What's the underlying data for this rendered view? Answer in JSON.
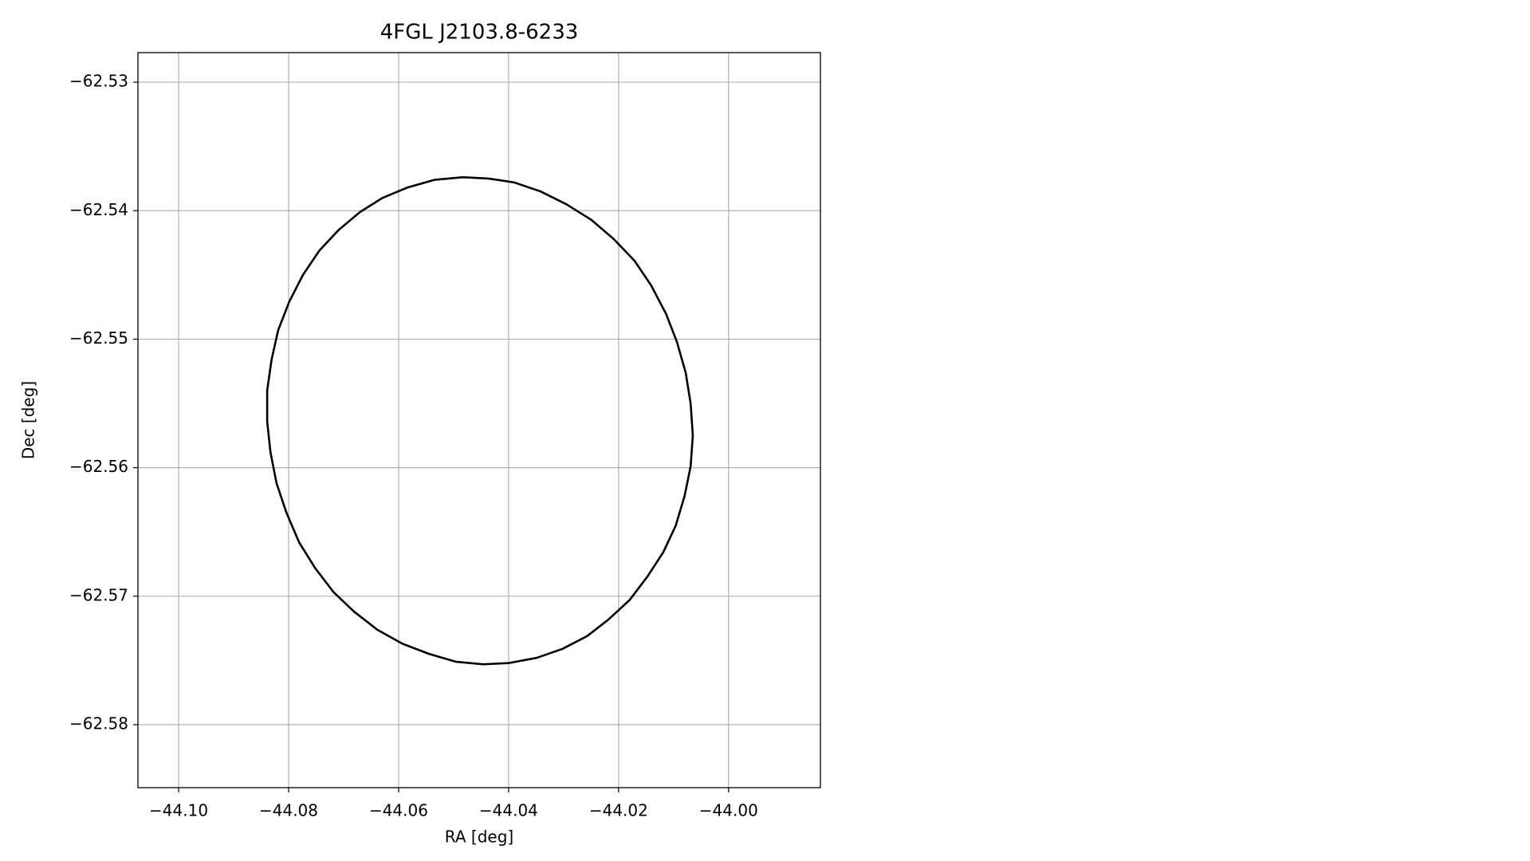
{
  "chart_data": {
    "type": "line",
    "title": "4FGL J2103.8-6233",
    "x_label": "RA [deg]",
    "y_label": "Dec [deg]",
    "grid": true,
    "xlim": [
      -44.1074,
      -43.9833
    ],
    "ylim": [
      -62.5849,
      -62.5277
    ],
    "xticks": [
      {
        "value": -44.1,
        "label": "−44.10"
      },
      {
        "value": -44.08,
        "label": "−44.08"
      },
      {
        "value": -44.06,
        "label": "−44.06"
      },
      {
        "value": -44.04,
        "label": "−44.04"
      },
      {
        "value": -44.02,
        "label": "−44.02"
      },
      {
        "value": -44.0,
        "label": "−44.00"
      }
    ],
    "yticks": [
      {
        "value": -62.53,
        "label": "−62.53"
      },
      {
        "value": -62.54,
        "label": "−62.54"
      },
      {
        "value": -62.55,
        "label": "−62.55"
      },
      {
        "value": -62.56,
        "label": "−62.56"
      },
      {
        "value": -62.57,
        "label": "−62.57"
      },
      {
        "value": -62.58,
        "label": "−62.58"
      }
    ],
    "series": [
      {
        "color": "#000000",
        "x": [
          -44.0483,
          -44.0437,
          -44.039,
          -44.0342,
          -44.0295,
          -44.025,
          -44.0209,
          -44.0171,
          -44.0141,
          -44.0114,
          -44.0094,
          -44.0078,
          -44.0069,
          -44.0065,
          -44.0069,
          -44.008,
          -44.0096,
          -44.0119,
          -44.0148,
          -44.018,
          -44.0218,
          -44.0257,
          -44.0302,
          -44.0349,
          -44.0399,
          -44.0446,
          -44.0496,
          -44.0544,
          -44.0593,
          -44.0639,
          -44.0681,
          -44.0718,
          -44.0752,
          -44.0781,
          -44.0804,
          -44.0822,
          -44.0833,
          -44.0839,
          -44.0839,
          -44.0831,
          -44.0819,
          -44.0799,
          -44.0774,
          -44.0744,
          -44.0709,
          -44.067,
          -44.0629,
          -44.0584,
          -44.0535,
          -44.0483
        ],
        "values": [
          -62.5374,
          -62.5375,
          -62.5378,
          -62.5385,
          -62.5395,
          -62.5407,
          -62.5422,
          -62.5439,
          -62.5458,
          -62.548,
          -62.5502,
          -62.5526,
          -62.555,
          -62.5575,
          -62.5599,
          -62.5622,
          -62.5645,
          -62.5666,
          -62.5685,
          -62.5703,
          -62.5718,
          -62.5731,
          -62.5741,
          -62.5748,
          -62.5752,
          -62.5753,
          -62.5751,
          -62.5745,
          -62.5737,
          -62.5726,
          -62.5712,
          -62.5697,
          -62.5678,
          -62.5658,
          -62.5635,
          -62.5612,
          -62.5588,
          -62.5564,
          -62.554,
          -62.5516,
          -62.5493,
          -62.5471,
          -62.545,
          -62.5431,
          -62.5415,
          -62.5401,
          -62.539,
          -62.5382,
          -62.5376,
          -62.5374
        ]
      }
    ]
  }
}
